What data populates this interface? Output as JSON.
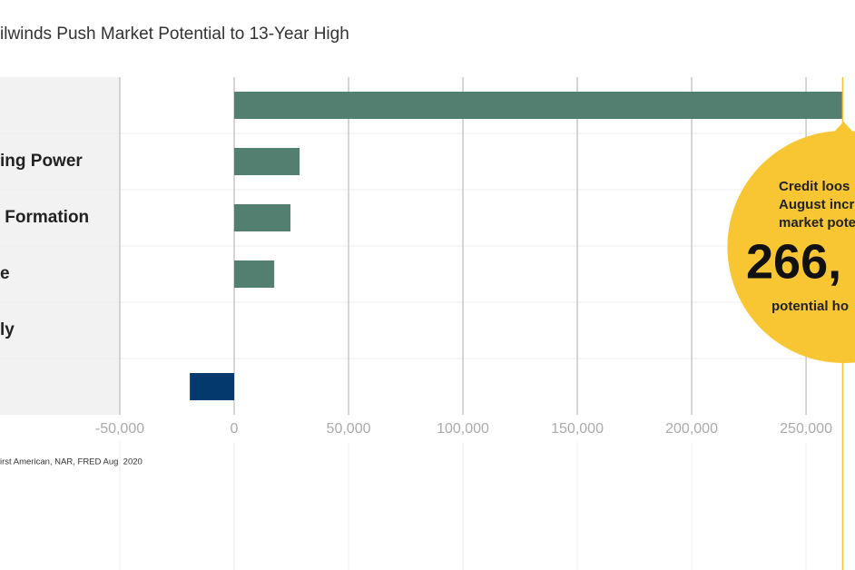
{
  "chart_data": {
    "type": "barh",
    "title": "ilwinds Push Market Potential to 13-Year High",
    "categories": [
      null,
      "ing Power",
      " Formation",
      "e",
      "ly",
      null
    ],
    "values": [
      266000,
      28600,
      24600,
      17500,
      0,
      -19400
    ],
    "colors": [
      "#527f70",
      "#527f70",
      "#527f70",
      "#527f70",
      "#527f70",
      "#023a6d"
    ],
    "xlim": [
      -50000,
      271000
    ],
    "xticks": [
      {
        "value": -50000,
        "label": "-50,000"
      },
      0,
      {
        "value": 50000,
        "label": "50,000"
      },
      {
        "value": 100000,
        "label": "100,000"
      },
      {
        "value": 150000,
        "label": "150,000"
      },
      {
        "value": 200000,
        "label": "200,000"
      },
      {
        "value": 250000,
        "label": "250,000"
      }
    ],
    "grid": true,
    "source": "irst American, NAR, FRED Aug. 2020",
    "annotation": {
      "lines": [
        "Credit loos",
        "August increas",
        "market pote"
      ],
      "number": "266,",
      "footer": "potential ho",
      "color": "#f8c533"
    }
  }
}
